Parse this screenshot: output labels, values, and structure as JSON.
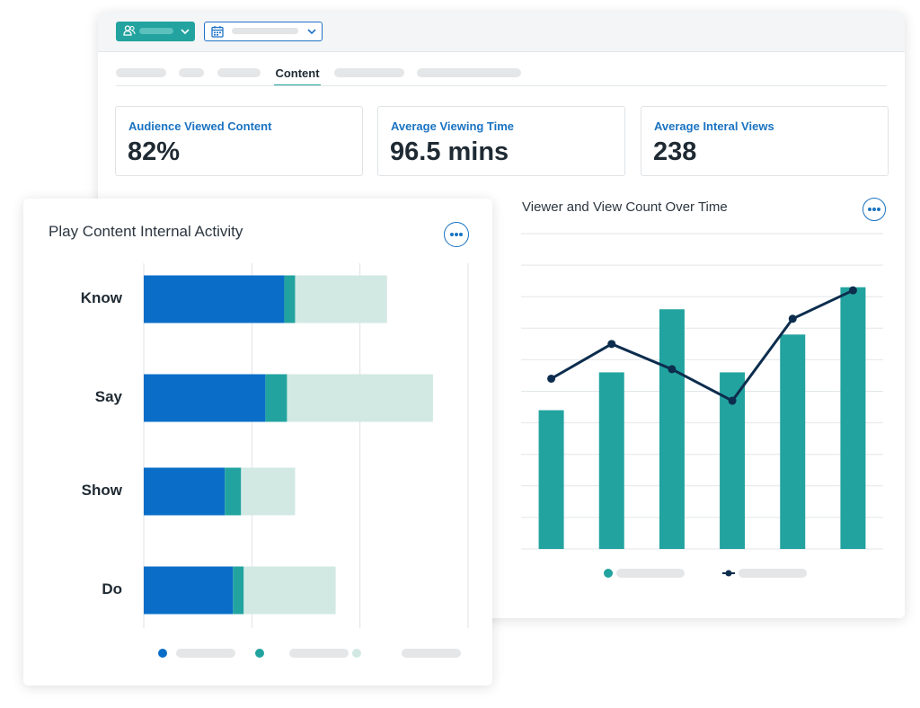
{
  "tabs": {
    "active_label": "Content"
  },
  "stats": [
    {
      "label": "Audience Viewed Content",
      "value": "82%"
    },
    {
      "label": "Average Viewing Time",
      "value": "96.5 mins"
    },
    {
      "label": "Average Interal Views",
      "value": "238"
    }
  ],
  "colors": {
    "teal": "#22a39f",
    "blue": "#0a6ec8",
    "light_teal": "#d2e9e3",
    "navy": "#0d2d4e",
    "accent": "#1a73c2"
  },
  "icons": {
    "audience": "user-group-icon",
    "date": "calendar-icon",
    "dropdown": "chevron-down-icon",
    "more": "more-options-icon"
  },
  "chart_data": [
    {
      "type": "bar",
      "orientation": "horizontal",
      "stacked": true,
      "title": "Play Content Internal Activity",
      "categories": [
        "Know",
        "Say",
        "Show",
        "Do"
      ],
      "series": [
        {
          "values": [
            52,
            45,
            30,
            33
          ]
        },
        {
          "values": [
            4,
            8,
            6,
            4
          ]
        },
        {
          "values": [
            34,
            54,
            20,
            34
          ]
        }
      ],
      "xlim": [
        0,
        120
      ],
      "grid": true,
      "legend": "bottom"
    },
    {
      "type": "bar",
      "title": "Viewer and View Count Over Time",
      "series": [
        {
          "type": "bar",
          "values": [
            44,
            56,
            76,
            56,
            68,
            83
          ]
        },
        {
          "type": "line",
          "values": [
            54,
            65,
            57,
            47,
            73,
            82
          ]
        }
      ],
      "ylim": [
        0,
        100
      ],
      "grid": true,
      "legend": "bottom"
    }
  ]
}
